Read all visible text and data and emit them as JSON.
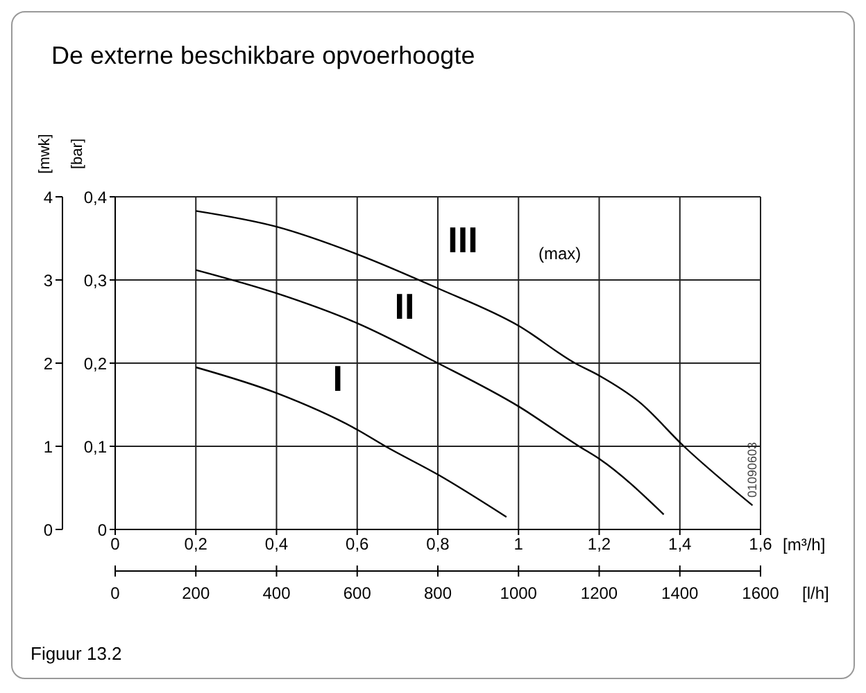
{
  "chart_data": {
    "type": "line",
    "title": "De externe beschikbare opvoerhoogte",
    "xlabel": "[m³/h]",
    "x2label": "[l/h]",
    "ylabel": "[mwk]",
    "y2label": "[bar]",
    "annotations": [
      "(max)",
      "01090603",
      "Figuur 13.2"
    ],
    "xlim": [
      0,
      1.6
    ],
    "xticks": [
      0,
      {
        "value": 0.2,
        "label": "0,2"
      },
      {
        "value": 0.4,
        "label": "0,4"
      },
      {
        "value": 0.6,
        "label": "0,6"
      },
      {
        "value": 0.8,
        "label": "0,8"
      },
      1,
      {
        "value": 1.2,
        "label": "1,2"
      },
      {
        "value": 1.4,
        "label": "1,4"
      },
      {
        "value": 1.6,
        "label": "1,6"
      }
    ],
    "x2lim": [
      0,
      1600
    ],
    "x2ticks": [
      0,
      200,
      400,
      600,
      800,
      1000,
      1200,
      1400,
      1600
    ],
    "ylim": [
      0,
      4
    ],
    "yticks": [
      0,
      1,
      2,
      3,
      4
    ],
    "y2lim": [
      0,
      0.4
    ],
    "y2ticks": [
      0,
      {
        "value": 0.1,
        "label": "0,1"
      },
      {
        "value": 0.2,
        "label": "0,2"
      },
      {
        "value": 0.3,
        "label": "0,3"
      },
      {
        "value": 0.4,
        "label": "0,4"
      }
    ],
    "grid": true,
    "series": [
      {
        "name": "I",
        "color": "#000000",
        "x": [
          0.2,
          0.4,
          0.6,
          0.67,
          0.8,
          0.97
        ],
        "values": [
          1.95,
          1.64,
          1.2,
          1.0,
          0.66,
          0.15
        ]
      },
      {
        "name": "II",
        "color": "#000000",
        "x": [
          0.2,
          0.4,
          0.6,
          0.8,
          1.0,
          1.15,
          1.2,
          1.36
        ],
        "values": [
          3.12,
          2.84,
          2.48,
          2.0,
          1.48,
          1.0,
          0.85,
          0.18
        ]
      },
      {
        "name": "III",
        "color": "#000000",
        "x": [
          0.2,
          0.4,
          0.6,
          0.8,
          1.0,
          1.14,
          1.2,
          1.3,
          1.41,
          1.58
        ],
        "values": [
          3.83,
          3.64,
          3.31,
          2.9,
          2.45,
          2.0,
          1.85,
          1.53,
          1.0,
          0.29
        ]
      }
    ]
  }
}
